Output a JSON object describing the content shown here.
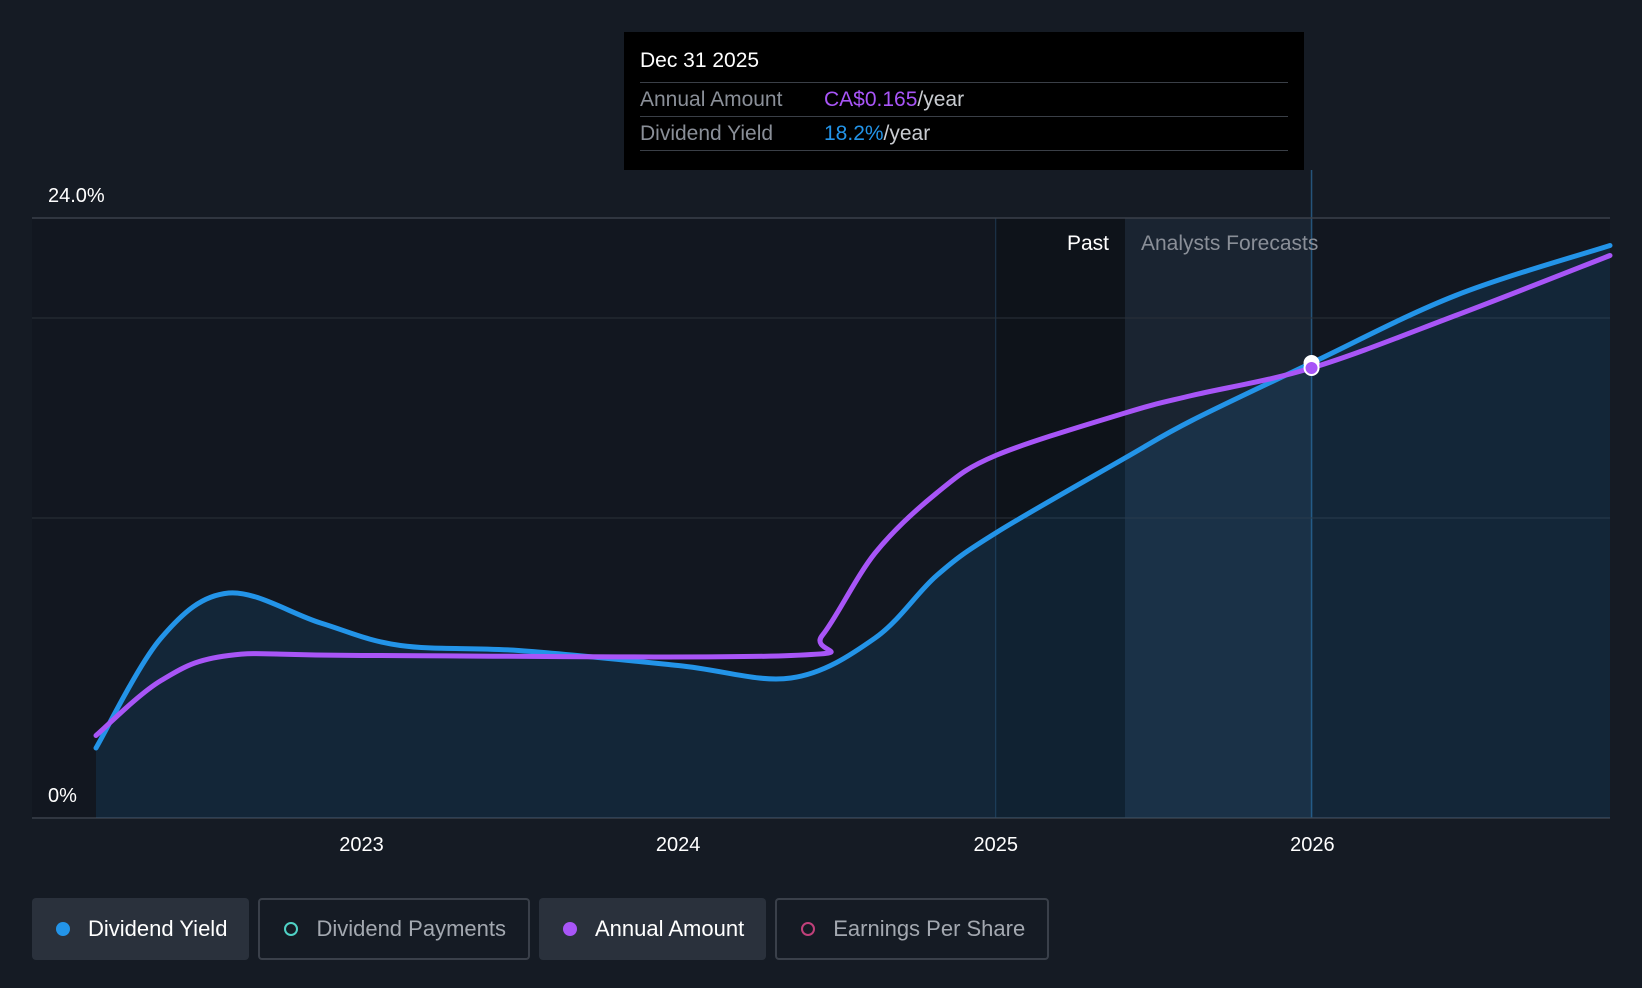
{
  "tooltip": {
    "date": "Dec 31 2025",
    "annual_amount_label": "Annual Amount",
    "annual_amount_value": "CA$0.165",
    "annual_amount_unit": "/year",
    "dividend_yield_label": "Dividend Yield",
    "dividend_yield_value": "18.2%",
    "dividend_yield_unit": "/year"
  },
  "legend": {
    "dividend_yield": "Dividend Yield",
    "dividend_payments": "Dividend Payments",
    "annual_amount": "Annual Amount",
    "earnings_per_share": "Earnings Per Share"
  },
  "colors": {
    "dividend_yield": "#2394e8",
    "annual_amount": "#a855f7",
    "dividend_payments": "#4fd1c5",
    "earnings_per_share": "#c0407a",
    "background": "#151b24"
  },
  "chart_data": {
    "type": "line",
    "ylim": [
      0,
      24.0
    ],
    "xlim": [
      "2022-03-01",
      "2026-12-10"
    ],
    "y_ticks": [
      "0%",
      "24.0%"
    ],
    "x_ticks": [
      {
        "date": "2023-01-01",
        "label": "2023"
      },
      {
        "date": "2024-01-01",
        "label": "2024"
      },
      {
        "date": "2025-01-01",
        "label": "2025"
      },
      {
        "date": "2026-01-01",
        "label": "2026"
      }
    ],
    "regions": {
      "past_label": "Past",
      "forecast_label": "Analysts Forecasts",
      "past_shade_start": "2025-01-01",
      "forecast_start": "2025-05-30",
      "forecast_shade_end": "2026-01-01"
    },
    "highlight_date": "2025-12-31",
    "grid": true,
    "series": [
      {
        "name": "Dividend Yield",
        "color": "#2394e8",
        "area": true,
        "points": [
          [
            "2022-03-01",
            2.8
          ],
          [
            "2022-05-15",
            7.2
          ],
          [
            "2022-08-01",
            9.0
          ],
          [
            "2022-11-15",
            7.8
          ],
          [
            "2023-02-15",
            6.9
          ],
          [
            "2023-07-01",
            6.7
          ],
          [
            "2024-01-01",
            6.1
          ],
          [
            "2024-05-10",
            5.6
          ],
          [
            "2024-08-15",
            7.2
          ],
          [
            "2024-10-25",
            9.7
          ],
          [
            "2025-01-01",
            11.4
          ],
          [
            "2025-05-30",
            14.4
          ],
          [
            "2025-08-15",
            15.9
          ],
          [
            "2025-12-31",
            18.2
          ],
          [
            "2026-06-15",
            20.9
          ],
          [
            "2026-12-10",
            22.9
          ]
        ]
      },
      {
        "name": "Annual Amount",
        "color": "#a855f7",
        "area": false,
        "points": [
          [
            "2022-03-01",
            3.3
          ],
          [
            "2022-05-15",
            5.5
          ],
          [
            "2022-08-01",
            6.5
          ],
          [
            "2023-01-01",
            6.5
          ],
          [
            "2024-05-10",
            6.5
          ],
          [
            "2024-06-15",
            7.3
          ],
          [
            "2024-08-15",
            10.6
          ],
          [
            "2024-10-25",
            13.0
          ],
          [
            "2025-01-01",
            14.5
          ],
          [
            "2025-05-30",
            16.2
          ],
          [
            "2025-08-15",
            16.9
          ],
          [
            "2025-12-31",
            18.0
          ],
          [
            "2026-06-15",
            20.1
          ],
          [
            "2026-12-10",
            22.5
          ]
        ]
      }
    ]
  }
}
